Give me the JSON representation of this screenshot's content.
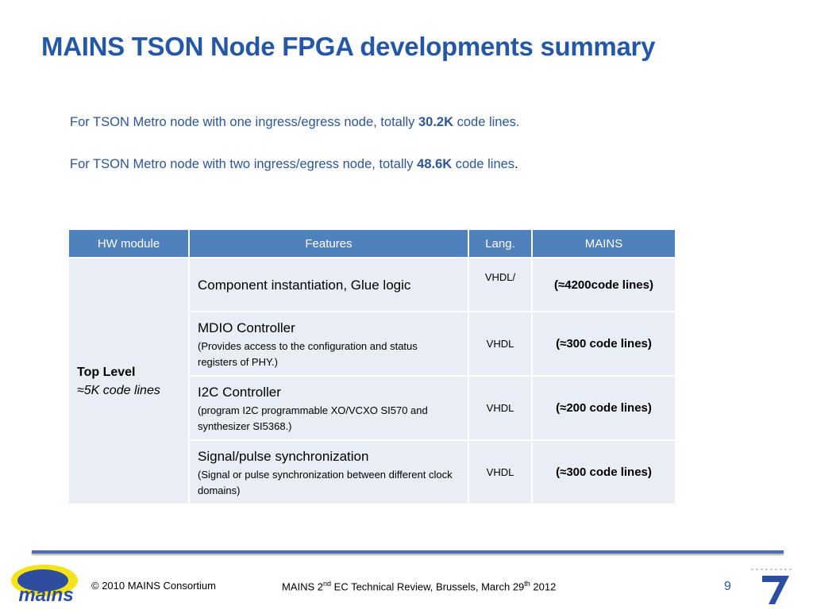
{
  "header": {
    "title": "MAINS TSON Node FPGA developments summary"
  },
  "intro": [
    {
      "parts": [
        "For TSON Metro node with one ingress/egress node, totally ",
        "30.2K",
        " code lines."
      ]
    },
    {
      "parts": [
        "For TSON Metro node with two ingress/egress node, totally ",
        "48.6K",
        " code lines",
        "."
      ]
    }
  ],
  "table": {
    "columns": [
      "HW module",
      "Features",
      "Lang.",
      "MAINS"
    ],
    "group": {
      "title": "Top Level",
      "note": "≈5K code lines"
    },
    "rows": [
      {
        "feature": "Component instantiation, Glue logic",
        "lang": "VHDL/",
        "mains": "(≈4200code lines)"
      },
      {
        "feature": "MDIO Controller",
        "detail": "(Provides access to the configuration and status registers of PHY.)",
        "lang": "VHDL",
        "mains": "(≈300 code lines)"
      },
      {
        "feature": "I2C Controller",
        "detail": "(program I2C programmable XO/VCXO SI570 and synthesizer SI5368.)",
        "lang": "VHDL",
        "mains": "(≈200 code lines)"
      },
      {
        "feature": "Signal/pulse synchronization",
        "detail": "(Signal or pulse synchronization between different clock domains)",
        "lang": "VHDL",
        "mains": "(≈300 code lines)"
      }
    ]
  },
  "footer": {
    "logo": "mains",
    "copyright": "© 2010 MAINS Consortium",
    "event": [
      "MAINS 2",
      "nd",
      " EC Technical Review, Brussels, March 29",
      "th",
      " 2012"
    ],
    "page": "9"
  }
}
